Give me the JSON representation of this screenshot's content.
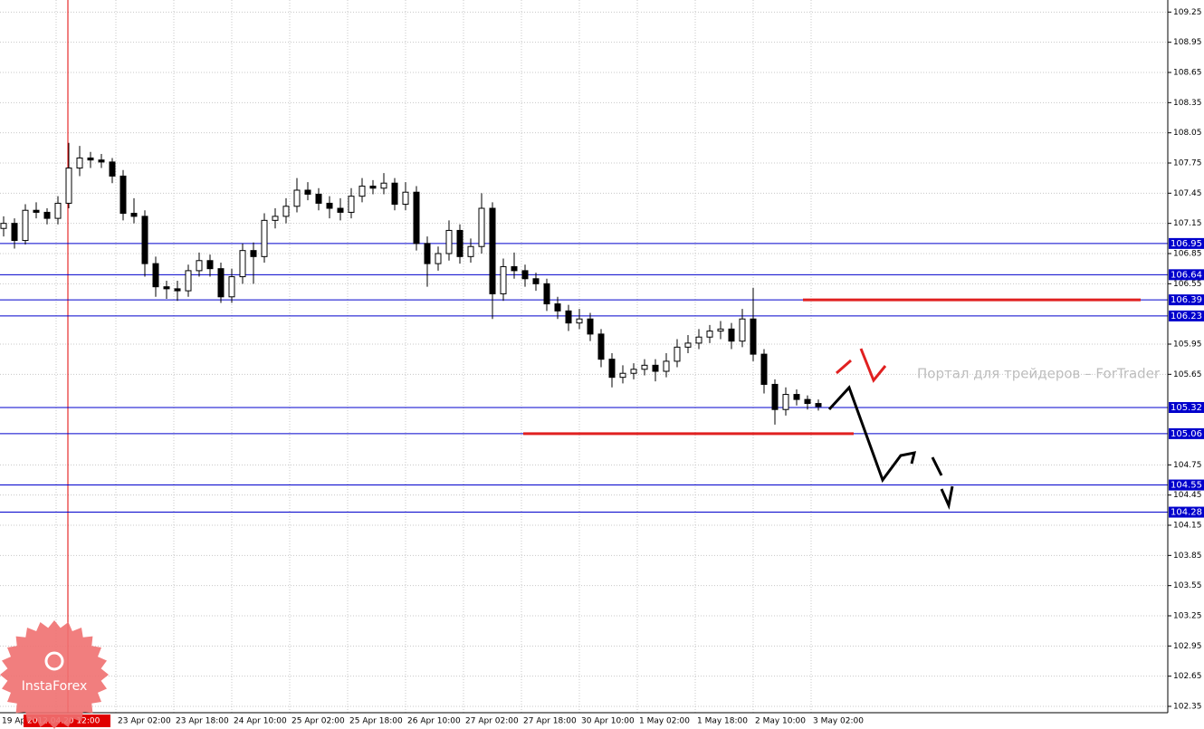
{
  "chart_data": {
    "type": "candlestick",
    "ylim": [
      102.17,
      109.37
    ],
    "yticks": [
      109.25,
      108.95,
      108.65,
      108.35,
      108.05,
      107.75,
      107.45,
      107.15,
      106.85,
      106.55,
      105.95,
      105.65,
      104.75,
      104.45,
      104.15,
      103.85,
      103.55,
      103.25,
      102.95,
      102.65,
      102.35
    ],
    "grid": true,
    "x_axis_labels": [
      "19 Ap",
      "23 Apr 02:00",
      "23 Apr 18:00",
      "24 Apr 10:00",
      "25 Apr 02:00",
      "25 Apr 18:00",
      "26 Apr 10:00",
      "27 Apr 02:00",
      "27 Apr 18:00",
      "30 Apr 10:00",
      "1 May 02:00",
      "1 May 18:00",
      "2 May 10:00",
      "3 May 02:00"
    ],
    "crosshair_label": "2012.04.20 12:00",
    "open": [
      107.1,
      107.15,
      106.98,
      107.28,
      107.26,
      107.2,
      107.35,
      107.7,
      107.8,
      107.78,
      107.76,
      107.62,
      107.25,
      107.22,
      106.75,
      106.52,
      106.5,
      106.48,
      106.68,
      106.78,
      106.7,
      106.42,
      106.62,
      106.88,
      106.82,
      107.18,
      107.22,
      107.32,
      107.48,
      107.44,
      107.35,
      107.3,
      107.26,
      107.42,
      107.52,
      107.5,
      107.55,
      107.34,
      107.46,
      106.95,
      106.75,
      106.85,
      107.08,
      106.82,
      106.92,
      107.3,
      106.45,
      106.72,
      106.68,
      106.6,
      106.55,
      106.35,
      106.28,
      106.16,
      106.2,
      106.05,
      105.8,
      105.62,
      105.66,
      105.7,
      105.74,
      105.68,
      105.78,
      105.92,
      105.96,
      106.02,
      106.08,
      106.1,
      105.98,
      106.2,
      105.85,
      105.55,
      105.3,
      105.45,
      105.4,
      105.36
    ],
    "high": [
      107.22,
      107.2,
      107.34,
      107.36,
      107.3,
      107.42,
      107.95,
      107.92,
      107.86,
      107.84,
      107.8,
      107.68,
      107.4,
      107.28,
      106.82,
      106.58,
      106.58,
      106.74,
      106.86,
      106.84,
      106.76,
      106.7,
      106.95,
      106.96,
      107.25,
      107.3,
      107.4,
      107.6,
      107.56,
      107.5,
      107.42,
      107.4,
      107.5,
      107.6,
      107.58,
      107.65,
      107.6,
      107.56,
      107.52,
      107.02,
      106.92,
      107.18,
      107.14,
      107.0,
      107.45,
      107.36,
      106.8,
      106.86,
      106.74,
      106.66,
      106.6,
      106.42,
      106.34,
      106.3,
      106.26,
      106.1,
      105.86,
      105.74,
      105.76,
      105.8,
      105.8,
      105.86,
      106.0,
      106.04,
      106.1,
      106.14,
      106.18,
      106.16,
      106.3,
      106.51,
      105.9,
      105.6,
      105.52,
      105.5,
      105.44,
      105.4
    ],
    "low": [
      107.02,
      106.9,
      106.94,
      107.2,
      107.14,
      107.14,
      107.3,
      107.62,
      107.7,
      107.7,
      107.55,
      107.18,
      107.15,
      106.62,
      106.42,
      106.4,
      106.38,
      106.42,
      106.62,
      106.62,
      106.36,
      106.36,
      106.55,
      106.55,
      106.76,
      107.1,
      107.15,
      107.26,
      107.38,
      107.28,
      107.2,
      107.18,
      107.2,
      107.36,
      107.44,
      107.44,
      107.28,
      107.28,
      106.88,
      106.52,
      106.68,
      106.78,
      106.75,
      106.76,
      106.85,
      106.2,
      106.38,
      106.6,
      106.52,
      106.48,
      106.28,
      106.2,
      106.08,
      106.1,
      105.98,
      105.72,
      105.52,
      105.56,
      105.6,
      105.64,
      105.58,
      105.62,
      105.72,
      105.86,
      105.9,
      105.96,
      106.0,
      105.9,
      105.92,
      105.78,
      105.46,
      105.15,
      105.24,
      105.34,
      105.3,
      105.29
    ],
    "close": [
      107.15,
      106.98,
      107.28,
      107.26,
      107.2,
      107.35,
      107.7,
      107.8,
      107.78,
      107.76,
      107.62,
      107.25,
      107.22,
      106.75,
      106.52,
      106.5,
      106.48,
      106.68,
      106.78,
      106.7,
      106.42,
      106.62,
      106.88,
      106.82,
      107.18,
      107.22,
      107.32,
      107.48,
      107.44,
      107.35,
      107.3,
      107.26,
      107.42,
      107.52,
      107.5,
      107.55,
      107.34,
      107.46,
      106.95,
      106.75,
      106.85,
      107.08,
      106.82,
      106.92,
      107.3,
      106.45,
      106.72,
      106.68,
      106.6,
      106.55,
      106.35,
      106.28,
      106.16,
      106.2,
      106.05,
      105.8,
      105.62,
      105.66,
      105.7,
      105.74,
      105.68,
      105.78,
      105.92,
      105.96,
      106.02,
      106.08,
      106.1,
      105.98,
      106.2,
      105.85,
      105.55,
      105.3,
      105.45,
      105.4,
      105.36,
      105.33
    ],
    "levels": [
      106.95,
      106.64,
      106.39,
      106.23,
      105.32,
      105.06,
      104.55,
      104.28
    ],
    "level_color": "#0000cc",
    "key_levels": [
      106.39,
      105.06
    ],
    "key_level_color": "#e02020",
    "watermark": "Портал для трейдеров – ForTrader",
    "logo": "InstaForex"
  }
}
